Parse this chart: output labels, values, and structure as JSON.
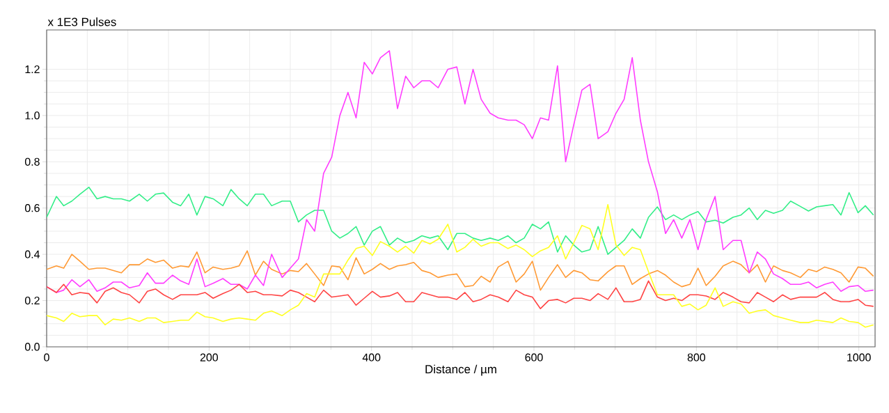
{
  "chart_data": {
    "type": "line",
    "ylabel": "x 1E3 Pulses",
    "xlabel": "Distance / µm",
    "xlim": [
      0,
      1020
    ],
    "ylim": [
      0,
      1.37
    ],
    "xticks": [
      0,
      200,
      400,
      600,
      800,
      1000
    ],
    "yticks": [
      {
        "value": 0,
        "label": "0.0"
      },
      {
        "value": 0.2,
        "label": "0.2"
      },
      {
        "value": 0.4,
        "label": "0.4"
      },
      {
        "value": 0.6,
        "label": "0.6"
      },
      {
        "value": 0.8,
        "label": "0.8"
      },
      {
        "value": 1.0,
        "label": "1.0"
      },
      {
        "value": 1.2,
        "label": "1.2"
      }
    ],
    "grid": true,
    "x": [
      0,
      12,
      21,
      31,
      41,
      52,
      62,
      72,
      82,
      92,
      102,
      114,
      124,
      134,
      144,
      155,
      165,
      175,
      185,
      195,
      205,
      217,
      227,
      237,
      247,
      257,
      267,
      277,
      290,
      300,
      310,
      320,
      330,
      341,
      351,
      361,
      371,
      381,
      391,
      401,
      411,
      422,
      432,
      442,
      452,
      462,
      472,
      482,
      494,
      505,
      515,
      525,
      535,
      546,
      556,
      568,
      578,
      588,
      598,
      608,
      618,
      629,
      639,
      649,
      659,
      669,
      679,
      691,
      701,
      711,
      721,
      731,
      741,
      752,
      762,
      772,
      782,
      792,
      802,
      812,
      823,
      833,
      845,
      855,
      865,
      875,
      885,
      895,
      906,
      916,
      928,
      938,
      948,
      958,
      968,
      978,
      988,
      999,
      1008,
      1018
    ],
    "series": [
      {
        "color": "#33ee88",
        "values": [
          0.56,
          0.65,
          0.61,
          0.63,
          0.66,
          0.69,
          0.64,
          0.65,
          0.64,
          0.64,
          0.63,
          0.66,
          0.63,
          0.66,
          0.665,
          0.625,
          0.61,
          0.66,
          0.57,
          0.65,
          0.64,
          0.61,
          0.68,
          0.64,
          0.61,
          0.66,
          0.66,
          0.61,
          0.63,
          0.63,
          0.54,
          0.57,
          0.59,
          0.59,
          0.5,
          0.47,
          0.49,
          0.52,
          0.44,
          0.5,
          0.52,
          0.44,
          0.47,
          0.45,
          0.46,
          0.48,
          0.47,
          0.48,
          0.42,
          0.49,
          0.49,
          0.47,
          0.46,
          0.47,
          0.46,
          0.48,
          0.45,
          0.47,
          0.53,
          0.51,
          0.54,
          0.41,
          0.48,
          0.44,
          0.41,
          0.42,
          0.52,
          0.4,
          0.43,
          0.46,
          0.51,
          0.47,
          0.56,
          0.605,
          0.55,
          0.57,
          0.55,
          0.57,
          0.585,
          0.54,
          0.547,
          0.535,
          0.56,
          0.57,
          0.6,
          0.55,
          0.59,
          0.577,
          0.59,
          0.63,
          0.607,
          0.587,
          0.605,
          0.61,
          0.615,
          0.57,
          0.667,
          0.58,
          0.61,
          0.57
        ]
      },
      {
        "color": "#ff9933",
        "values": [
          0.335,
          0.35,
          0.34,
          0.4,
          0.37,
          0.335,
          0.34,
          0.34,
          0.33,
          0.32,
          0.355,
          0.355,
          0.38,
          0.365,
          0.375,
          0.34,
          0.35,
          0.345,
          0.41,
          0.32,
          0.345,
          0.335,
          0.34,
          0.35,
          0.415,
          0.31,
          0.37,
          0.335,
          0.315,
          0.33,
          0.325,
          0.36,
          0.315,
          0.265,
          0.35,
          0.345,
          0.29,
          0.385,
          0.315,
          0.335,
          0.36,
          0.335,
          0.35,
          0.355,
          0.365,
          0.33,
          0.32,
          0.3,
          0.31,
          0.315,
          0.26,
          0.265,
          0.305,
          0.28,
          0.345,
          0.37,
          0.28,
          0.315,
          0.37,
          0.245,
          0.3,
          0.355,
          0.3,
          0.33,
          0.32,
          0.29,
          0.285,
          0.325,
          0.35,
          0.35,
          0.27,
          0.295,
          0.315,
          0.33,
          0.31,
          0.28,
          0.26,
          0.27,
          0.34,
          0.265,
          0.305,
          0.35,
          0.37,
          0.355,
          0.32,
          0.355,
          0.28,
          0.35,
          0.33,
          0.32,
          0.3,
          0.335,
          0.325,
          0.345,
          0.335,
          0.32,
          0.28,
          0.345,
          0.34,
          0.305
        ]
      },
      {
        "color": "#ff3dff",
        "values": [
          0.26,
          0.235,
          0.245,
          0.29,
          0.26,
          0.29,
          0.24,
          0.255,
          0.28,
          0.28,
          0.255,
          0.265,
          0.32,
          0.275,
          0.275,
          0.31,
          0.285,
          0.27,
          0.38,
          0.26,
          0.275,
          0.295,
          0.27,
          0.27,
          0.25,
          0.31,
          0.265,
          0.4,
          0.3,
          0.34,
          0.38,
          0.55,
          0.5,
          0.75,
          0.82,
          1.0,
          1.1,
          0.99,
          1.23,
          1.18,
          1.25,
          1.28,
          1.03,
          1.17,
          1.12,
          1.15,
          1.15,
          1.12,
          1.2,
          1.21,
          1.05,
          1.2,
          1.07,
          1.01,
          0.99,
          0.98,
          0.98,
          0.96,
          0.9,
          0.99,
          0.98,
          1.215,
          0.8,
          0.96,
          1.11,
          1.135,
          0.9,
          0.93,
          1.01,
          1.07,
          1.25,
          0.98,
          0.8,
          0.67,
          0.49,
          0.55,
          0.47,
          0.55,
          0.42,
          0.55,
          0.65,
          0.42,
          0.46,
          0.46,
          0.32,
          0.41,
          0.38,
          0.315,
          0.295,
          0.27,
          0.27,
          0.28,
          0.255,
          0.27,
          0.28,
          0.24,
          0.26,
          0.265,
          0.24,
          0.245
        ]
      },
      {
        "color": "#ff4444",
        "values": [
          0.26,
          0.235,
          0.27,
          0.225,
          0.235,
          0.23,
          0.19,
          0.24,
          0.255,
          0.235,
          0.225,
          0.19,
          0.24,
          0.25,
          0.225,
          0.205,
          0.225,
          0.225,
          0.225,
          0.235,
          0.21,
          0.23,
          0.245,
          0.27,
          0.235,
          0.24,
          0.225,
          0.225,
          0.22,
          0.245,
          0.235,
          0.215,
          0.195,
          0.245,
          0.215,
          0.22,
          0.225,
          0.18,
          0.21,
          0.24,
          0.215,
          0.22,
          0.235,
          0.195,
          0.195,
          0.235,
          0.225,
          0.215,
          0.215,
          0.205,
          0.235,
          0.195,
          0.205,
          0.225,
          0.215,
          0.195,
          0.245,
          0.225,
          0.215,
          0.165,
          0.2,
          0.205,
          0.19,
          0.21,
          0.21,
          0.2,
          0.23,
          0.205,
          0.255,
          0.195,
          0.195,
          0.205,
          0.285,
          0.215,
          0.2,
          0.21,
          0.2,
          0.225,
          0.225,
          0.22,
          0.205,
          0.235,
          0.215,
          0.195,
          0.19,
          0.235,
          0.215,
          0.195,
          0.225,
          0.205,
          0.215,
          0.215,
          0.215,
          0.235,
          0.205,
          0.195,
          0.195,
          0.205,
          0.18,
          0.175
        ]
      },
      {
        "color": "#ffff22",
        "values": [
          0.135,
          0.125,
          0.11,
          0.145,
          0.13,
          0.135,
          0.135,
          0.095,
          0.12,
          0.115,
          0.125,
          0.11,
          0.125,
          0.125,
          0.105,
          0.11,
          0.115,
          0.115,
          0.15,
          0.13,
          0.125,
          0.11,
          0.12,
          0.125,
          0.12,
          0.115,
          0.145,
          0.155,
          0.135,
          0.16,
          0.18,
          0.23,
          0.215,
          0.315,
          0.315,
          0.315,
          0.375,
          0.425,
          0.435,
          0.395,
          0.455,
          0.435,
          0.41,
          0.435,
          0.405,
          0.46,
          0.445,
          0.465,
          0.53,
          0.41,
          0.43,
          0.465,
          0.435,
          0.45,
          0.45,
          0.425,
          0.44,
          0.42,
          0.39,
          0.415,
          0.43,
          0.48,
          0.38,
          0.45,
          0.525,
          0.51,
          0.42,
          0.615,
          0.44,
          0.395,
          0.43,
          0.42,
          0.325,
          0.225,
          0.225,
          0.225,
          0.175,
          0.185,
          0.16,
          0.18,
          0.255,
          0.175,
          0.195,
          0.185,
          0.145,
          0.155,
          0.16,
          0.135,
          0.125,
          0.115,
          0.105,
          0.105,
          0.115,
          0.11,
          0.105,
          0.125,
          0.11,
          0.105,
          0.085,
          0.095
        ]
      }
    ]
  }
}
